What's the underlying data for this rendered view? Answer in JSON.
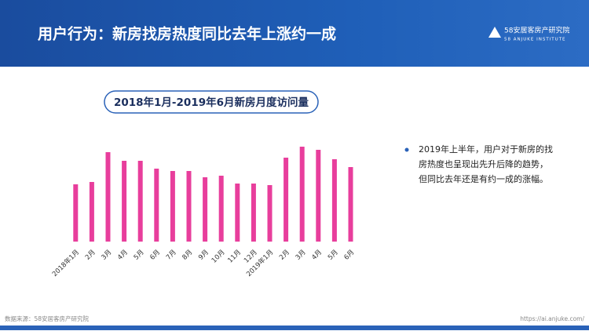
{
  "header": {
    "title": "用户行为：新房找房热度同比去年上涨约一成",
    "logo_name": "58安居客房产研究院",
    "logo_sub": "58 ANJUKE INSTITUTE"
  },
  "chart_data": {
    "type": "bar",
    "title": "2018年1月-2019年6月新房月度访问量",
    "categories": [
      "2018年1月",
      "2月",
      "3月",
      "4月",
      "5月",
      "6月",
      "7月",
      "8月",
      "9月",
      "10月",
      "11月",
      "12月",
      "2019年1月",
      "2月",
      "3月",
      "4月",
      "5月",
      "6月"
    ],
    "values": [
      73,
      76,
      114,
      103,
      103,
      93,
      90,
      90,
      82,
      84,
      74,
      74,
      72,
      107,
      121,
      117,
      105,
      95
    ],
    "color": "#e83e9c",
    "ylim": [
      0,
      130
    ]
  },
  "note": {
    "lines": [
      "2019年上半年，用户对于新房的找",
      "房热度也呈现出先升后降的趋势，",
      "但同比去年还是有约一成的涨幅。"
    ]
  },
  "footer": {
    "source": "数据来源：58安居客房产研究院",
    "url": "https://ai.anjuke.com/"
  }
}
